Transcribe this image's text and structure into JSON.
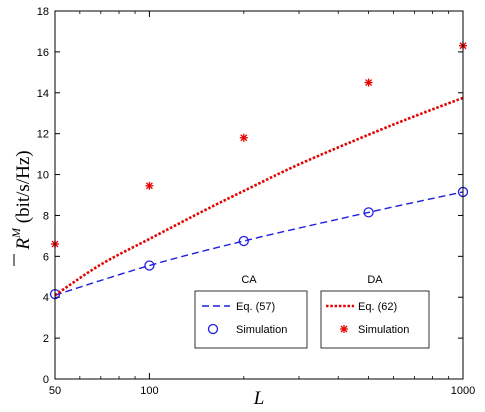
{
  "chart_data": {
    "type": "line",
    "xlabel": "L",
    "ylabel": {
      "prefix": "R",
      "superscript": "M",
      "unit": " (bit/s/Hz)"
    },
    "xscale": "log",
    "xlim": [
      50,
      1000
    ],
    "ylim": [
      0,
      18
    ],
    "xticks": [
      50,
      100,
      1000
    ],
    "yticks": [
      0,
      2,
      4,
      6,
      8,
      10,
      12,
      14,
      16,
      18
    ],
    "grid": false,
    "legend": [
      {
        "title": "CA",
        "entries": [
          {
            "series": "ca_eq",
            "label": "Eq. (57)"
          },
          {
            "series": "ca_sim",
            "label": "Simulation"
          }
        ]
      },
      {
        "title": "DA",
        "entries": [
          {
            "series": "da_eq",
            "label": "Eq. (62)"
          },
          {
            "series": "da_sim",
            "label": "Simulation"
          }
        ]
      }
    ],
    "series": [
      {
        "id": "ca_eq",
        "name": "Eq. (57)",
        "group": "CA",
        "style": "dashed-line",
        "color": "#1f1fe0",
        "x": [
          50,
          100,
          200,
          500,
          1000
        ],
        "y": [
          4.1,
          5.55,
          6.75,
          8.15,
          9.15
        ]
      },
      {
        "id": "ca_sim",
        "name": "Simulation",
        "group": "CA",
        "style": "circle-marker",
        "color": "#1f1fe0",
        "x": [
          50,
          100,
          200,
          500,
          1000
        ],
        "y": [
          4.15,
          5.55,
          6.75,
          8.15,
          9.15
        ]
      },
      {
        "id": "da_eq",
        "name": "Eq. (62)",
        "group": "DA",
        "style": "dotted-line",
        "color": "#e60000",
        "x": [
          50,
          70,
          100,
          150,
          200,
          300,
          500,
          700,
          1000
        ],
        "y": [
          4.1,
          5.6,
          6.85,
          8.25,
          9.2,
          10.5,
          11.95,
          12.85,
          13.75
        ]
      },
      {
        "id": "da_sim",
        "name": "Simulation",
        "group": "DA",
        "style": "star-marker",
        "color": "#e60000",
        "x": [
          50,
          100,
          200,
          500,
          1000
        ],
        "y": [
          6.6,
          9.45,
          11.8,
          14.5,
          16.3
        ]
      }
    ]
  }
}
